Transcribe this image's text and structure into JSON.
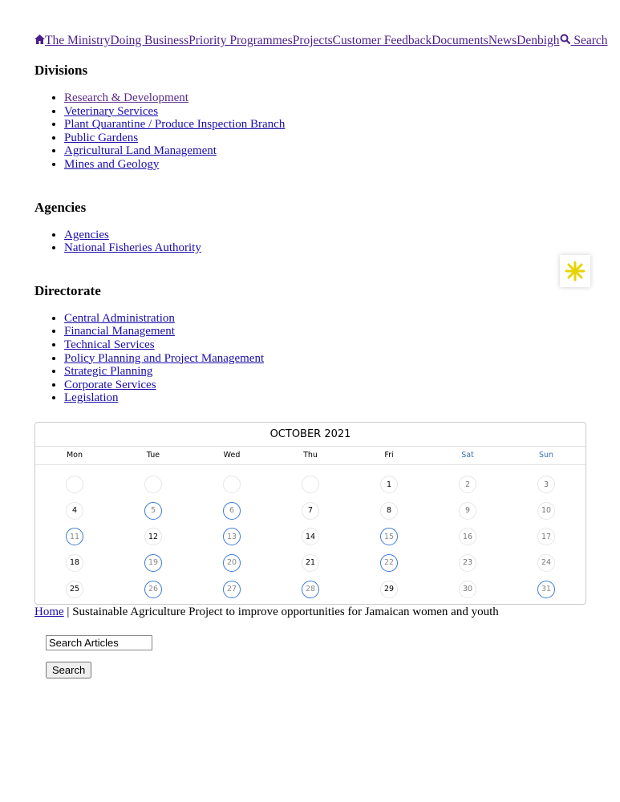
{
  "nav": {
    "items": [
      "The Ministry",
      "Doing Business",
      "Priority Programmes",
      "Projects",
      "Customer Feedback",
      "Documents",
      "News",
      "Denbigh"
    ],
    "search": "Search"
  },
  "sections": [
    {
      "title": "Divisions",
      "links": [
        "Research & Development",
        "Veterinary Services",
        "Plant Quarantine / Produce Inspection Branch",
        "Public Gardens",
        "Agricultural Land Management",
        "Mines and Geology"
      ]
    },
    {
      "title": "Agencies",
      "links": [
        "Agencies",
        "National Fisheries Authority"
      ]
    },
    {
      "title": "Directorate",
      "links": [
        "Central Administration",
        "Financial Management",
        "Technical Services",
        "Policy Planning and Project Management",
        "Strategic Planning",
        "Corporate Services",
        "Legislation"
      ]
    }
  ],
  "calendar": {
    "title": "OCTOBER 2021",
    "weekdays": [
      "Mon",
      "Tue",
      "Wed",
      "Thu",
      "Fri",
      "Sat",
      "Sun"
    ],
    "days": [
      null,
      null,
      null,
      null,
      1,
      2,
      3,
      4,
      5,
      6,
      7,
      8,
      9,
      10,
      11,
      12,
      13,
      14,
      15,
      16,
      17,
      18,
      19,
      20,
      21,
      22,
      23,
      24,
      25,
      26,
      27,
      28,
      29,
      30,
      31
    ],
    "marked_days": [
      5,
      6,
      11,
      13,
      15,
      19,
      20,
      22,
      26,
      27,
      28,
      31
    ]
  },
  "breadcrumb": {
    "home": "Home",
    "separator": "|",
    "current": "Sustainable Agriculture Project to improve opportunities for Jamaican women and youth"
  },
  "search_form": {
    "placeholder": "Search Articles",
    "button": "Search"
  }
}
